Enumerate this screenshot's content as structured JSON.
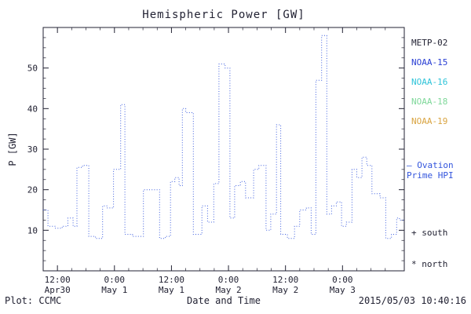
{
  "title": "Hemispheric Power [GW]",
  "axes": {
    "ylabel": "P [GW]",
    "xlabel": "Date and Time"
  },
  "footer": {
    "left": "Plot: CCMC",
    "right": "2015/05/03 10:40:16"
  },
  "legend": {
    "satellites": [
      {
        "label": "METP-02",
        "color": "#222233"
      },
      {
        "label": "NOAA-15",
        "color": "#2a3fd4"
      },
      {
        "label": "NOAA-16",
        "color": "#2fc4d9"
      },
      {
        "label": "NOAA-18",
        "color": "#7fd89a"
      },
      {
        "label": "NOAA-19",
        "color": "#d9a441"
      }
    ],
    "ovation_line1": "— Ovation",
    "ovation_line2": "Prime HPI",
    "ovation_color": "#3355dd",
    "south_label": "+ south",
    "north_label": "* north"
  },
  "chart_data": {
    "type": "line",
    "title": "Hemispheric Power [GW]",
    "xlabel": "Date and Time",
    "ylabel": "P [GW]",
    "series_name": "Ovation Prime HPI",
    "line_color": "#3f5fdf",
    "line_style": "dotted-step",
    "x_unit": "hours since Apr30 00:00",
    "xlim": [
      9,
      85
    ],
    "ylim": [
      0,
      60
    ],
    "yticks": [
      10,
      20,
      30,
      40,
      50
    ],
    "xticks": [
      {
        "hour": 12,
        "time": "12:00",
        "date": "Apr30"
      },
      {
        "hour": 24,
        "time": "0:00",
        "date": "May 1"
      },
      {
        "hour": 36,
        "time": "12:00",
        "date": "May 1"
      },
      {
        "hour": 48,
        "time": "0:00",
        "date": "May 2"
      },
      {
        "hour": 60,
        "time": "12:00",
        "date": "May 2"
      },
      {
        "hour": 72,
        "time": "0:00",
        "date": "May 3"
      }
    ],
    "x": [
      9,
      10,
      11.5,
      13,
      14.2,
      15.3,
      16.1,
      17.3,
      18.6,
      20,
      21.5,
      22.4,
      23.8,
      25.3,
      26.2,
      27.8,
      30.1,
      33.5,
      34.7,
      35.8,
      36.7,
      37.6,
      38.3,
      39,
      40.6,
      42.4,
      43.6,
      44.9,
      46,
      47.3,
      48.3,
      49.3,
      50.5,
      51.6,
      53.3,
      54.4,
      55.9,
      56.9,
      58.1,
      59,
      60.4,
      61.9,
      63,
      64.4,
      65.4,
      66.4,
      67.6,
      68.7,
      69.7,
      70.7,
      71.8,
      72.8,
      74,
      75,
      76.1,
      77.1,
      78.2,
      79.9,
      81.1,
      82.3,
      83.4,
      84
    ],
    "values": [
      15,
      11,
      10.5,
      11,
      13,
      11,
      25.5,
      26,
      8.5,
      8,
      16,
      15.5,
      25,
      41,
      9,
      8.5,
      20,
      8,
      8.5,
      22,
      23,
      21,
      40,
      39,
      9,
      16,
      12,
      21.5,
      51,
      50,
      13,
      21,
      22,
      18,
      25,
      26,
      10,
      14,
      36,
      9,
      8,
      11,
      15,
      15.5,
      9,
      47,
      58,
      14,
      16,
      17,
      11,
      12,
      25,
      23,
      28,
      26,
      19,
      18,
      8,
      9,
      13,
      12.5
    ]
  }
}
